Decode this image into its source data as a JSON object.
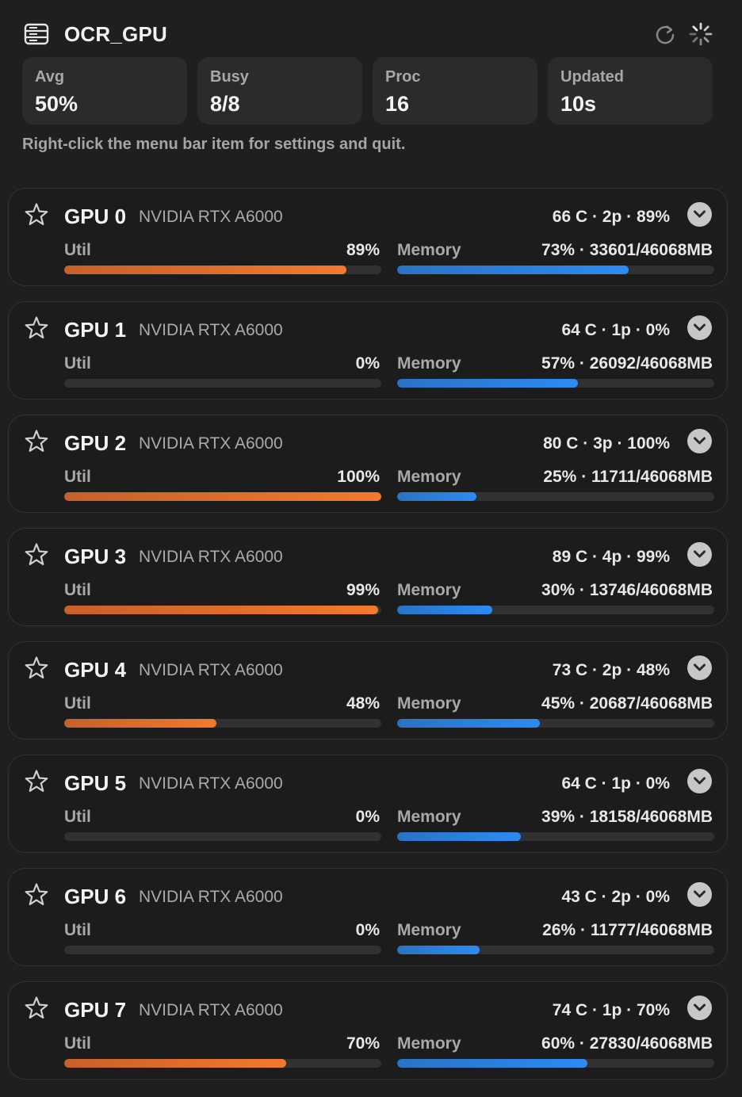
{
  "header": {
    "title": "OCR_GPU",
    "icons": [
      "server-icon",
      "refresh-icon",
      "spinner-icon"
    ]
  },
  "stats": [
    {
      "label": "Avg",
      "value": "50%"
    },
    {
      "label": "Busy",
      "value": "8/8"
    },
    {
      "label": "Proc",
      "value": "16"
    },
    {
      "label": "Updated",
      "value": "10s"
    }
  ],
  "hint": "Right-click the menu bar item for settings and quit.",
  "labels": {
    "util": "Util",
    "memory": "Memory"
  },
  "colors": {
    "background": "#1f1f20",
    "util_bar": "#f27a2c",
    "memory_bar": "#2c8bf2",
    "track": "#313133"
  },
  "gpus": [
    {
      "name": "GPU 0",
      "model": "NVIDIA RTX A6000",
      "stats": "66 C · 2p · 89%",
      "util": "89%",
      "util_pct": 89,
      "memory": "73% · 33601/46068MB",
      "mem_pct": 73
    },
    {
      "name": "GPU 1",
      "model": "NVIDIA RTX A6000",
      "stats": "64 C · 1p · 0%",
      "util": "0%",
      "util_pct": 0,
      "memory": "57% · 26092/46068MB",
      "mem_pct": 57
    },
    {
      "name": "GPU 2",
      "model": "NVIDIA RTX A6000",
      "stats": "80 C · 3p · 100%",
      "util": "100%",
      "util_pct": 100,
      "memory": "25% · 11711/46068MB",
      "mem_pct": 25
    },
    {
      "name": "GPU 3",
      "model": "NVIDIA RTX A6000",
      "stats": "89 C · 4p · 99%",
      "util": "99%",
      "util_pct": 99,
      "memory": "30% · 13746/46068MB",
      "mem_pct": 30
    },
    {
      "name": "GPU 4",
      "model": "NVIDIA RTX A6000",
      "stats": "73 C · 2p · 48%",
      "util": "48%",
      "util_pct": 48,
      "memory": "45% · 20687/46068MB",
      "mem_pct": 45
    },
    {
      "name": "GPU 5",
      "model": "NVIDIA RTX A6000",
      "stats": "64 C · 1p · 0%",
      "util": "0%",
      "util_pct": 0,
      "memory": "39% · 18158/46068MB",
      "mem_pct": 39
    },
    {
      "name": "GPU 6",
      "model": "NVIDIA RTX A6000",
      "stats": "43 C · 2p · 0%",
      "util": "0%",
      "util_pct": 0,
      "memory": "26% · 11777/46068MB",
      "mem_pct": 26
    },
    {
      "name": "GPU 7",
      "model": "NVIDIA RTX A6000",
      "stats": "74 C · 1p · 70%",
      "util": "70%",
      "util_pct": 70,
      "memory": "60% · 27830/46068MB",
      "mem_pct": 60
    }
  ]
}
